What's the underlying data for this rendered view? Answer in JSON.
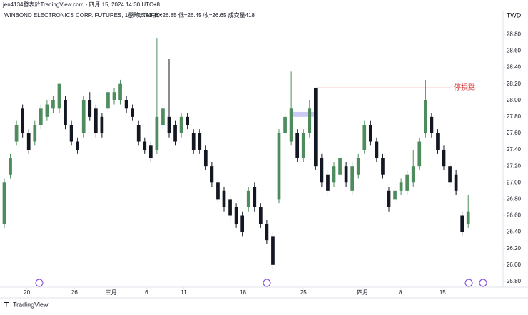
{
  "chart_data": {
    "type": "candlestick",
    "header": "jen4134發表於TradingView.com - 四月 15, 2024 14:30 UTC+8",
    "title": "WINBOND ELECTRONICS CORP. FUTURES, 1小時, TAIFEX",
    "legend_values": "開=26.50  高=26.85  低=26.45  收=26.65  成交量418",
    "currency": "TWD",
    "footer": "TradingView",
    "up_color": "#4e8c5d",
    "down_color": "#131722",
    "grid": false,
    "ylim": [
      25.73,
      29.08
    ],
    "yticks": [
      {
        "value": 25.8,
        "label": "25.80"
      },
      {
        "value": 26.0,
        "label": "26.00"
      },
      {
        "value": 26.2,
        "label": "26.20"
      },
      {
        "value": 26.4,
        "label": "26.40"
      },
      {
        "value": 26.6,
        "label": "26.60"
      },
      {
        "value": 26.8,
        "label": "26.80"
      },
      {
        "value": 27.0,
        "label": "27.00"
      },
      {
        "value": 27.2,
        "label": "27.20"
      },
      {
        "value": 27.4,
        "label": "27.40"
      },
      {
        "value": 27.6,
        "label": "27.60"
      },
      {
        "value": 27.8,
        "label": "27.80"
      },
      {
        "value": 28.0,
        "label": "28.00"
      },
      {
        "value": 28.2,
        "label": "28.20"
      },
      {
        "value": 28.4,
        "label": "28.40"
      },
      {
        "value": 28.6,
        "label": "28.60"
      },
      {
        "value": 28.8,
        "label": "28.80"
      }
    ],
    "xlim": [
      -0.7,
      81.7
    ],
    "xticks": [
      {
        "value": 3.7,
        "label": "20"
      },
      {
        "value": 11.5,
        "label": "26"
      },
      {
        "value": 17.5,
        "label": "三月"
      },
      {
        "value": 23.3,
        "label": "6"
      },
      {
        "value": 29.4,
        "label": "11"
      },
      {
        "value": 39.1,
        "label": "18"
      },
      {
        "value": 49.0,
        "label": "25"
      },
      {
        "value": 58.7,
        "label": "四月"
      },
      {
        "value": 64.9,
        "label": "8"
      },
      {
        "value": 71.8,
        "label": "15"
      }
    ],
    "open": [
      26.5,
      27.1,
      27.5,
      27.9,
      27.6,
      27.5,
      27.7,
      27.8,
      27.9,
      27.9,
      28.0,
      27.7,
      27.5,
      27.6,
      28.0,
      27.9,
      27.8,
      27.9,
      28.0,
      28.0,
      28.0,
      27.9,
      27.7,
      27.5,
      27.45,
      27.4,
      27.7,
      27.8,
      27.7,
      27.6,
      27.8,
      27.6,
      27.6,
      27.4,
      27.2,
      27.0,
      26.9,
      26.8,
      26.7,
      26.6,
      26.7,
      26.95,
      26.7,
      26.5,
      26.35,
      26.8,
      27.6,
      27.5,
      27.6,
      27.3,
      27.6,
      28.15,
      27.3,
      27.1,
      27.0,
      27.1,
      27.2,
      26.9,
      27.1,
      27.4,
      27.7,
      27.5,
      27.3,
      26.9,
      26.8,
      26.9,
      26.9,
      27.0,
      27.2,
      27.6,
      27.8,
      27.6,
      27.4,
      27.2,
      27.1,
      26.6,
      26.5
    ],
    "high": [
      27.05,
      27.35,
      27.75,
      27.95,
      27.65,
      27.75,
      27.95,
      28.0,
      28.05,
      28.2,
      28.05,
      27.75,
      27.55,
      28.05,
      28.1,
      27.95,
      27.85,
      28.15,
      28.15,
      28.25,
      28.05,
      27.95,
      27.75,
      27.55,
      27.5,
      28.75,
      27.95,
      28.5,
      27.75,
      27.85,
      27.85,
      27.65,
      27.65,
      27.45,
      27.25,
      27.05,
      26.95,
      26.85,
      26.75,
      26.65,
      26.95,
      27.0,
      26.75,
      26.55,
      26.4,
      27.65,
      27.85,
      28.35,
      27.65,
      27.65,
      28.0,
      28.15,
      27.35,
      27.15,
      27.25,
      27.35,
      27.25,
      27.25,
      27.35,
      27.75,
      27.75,
      27.55,
      27.35,
      26.95,
      26.95,
      27.05,
      27.15,
      27.4,
      27.55,
      28.25,
      27.85,
      27.65,
      27.45,
      27.25,
      27.15,
      26.65,
      26.85
    ],
    "low": [
      26.45,
      27.05,
      27.45,
      27.55,
      27.35,
      27.45,
      27.65,
      27.75,
      27.85,
      27.85,
      27.65,
      27.45,
      27.35,
      27.55,
      27.75,
      27.55,
      27.55,
      27.85,
      27.95,
      27.95,
      27.85,
      27.75,
      27.45,
      27.35,
      27.25,
      27.35,
      27.65,
      27.55,
      27.45,
      27.55,
      27.65,
      27.35,
      27.35,
      27.15,
      26.95,
      26.75,
      26.65,
      26.55,
      26.45,
      26.35,
      26.65,
      26.65,
      26.45,
      26.25,
      25.95,
      26.75,
      27.55,
      27.45,
      27.25,
      27.25,
      27.55,
      27.15,
      26.95,
      26.85,
      26.95,
      27.05,
      26.95,
      26.85,
      27.05,
      27.35,
      27.45,
      27.25,
      27.05,
      26.65,
      26.75,
      26.85,
      26.85,
      26.95,
      27.15,
      27.55,
      27.55,
      27.35,
      27.15,
      26.95,
      26.85,
      26.35,
      26.45
    ],
    "close": [
      27.0,
      27.3,
      27.7,
      27.6,
      27.4,
      27.7,
      27.9,
      27.95,
      28.0,
      28.2,
      27.7,
      27.5,
      27.4,
      28.0,
      27.8,
      27.6,
      27.6,
      28.1,
      28.1,
      28.2,
      27.9,
      27.8,
      27.5,
      27.4,
      27.3,
      27.8,
      27.9,
      27.6,
      27.5,
      27.8,
      27.7,
      27.4,
      27.4,
      27.2,
      27.0,
      26.8,
      26.7,
      26.6,
      26.5,
      26.4,
      26.9,
      26.7,
      26.5,
      26.3,
      26.0,
      27.6,
      27.8,
      27.9,
      27.3,
      27.6,
      27.9,
      27.2,
      27.0,
      26.9,
      27.2,
      27.3,
      27.0,
      27.2,
      27.3,
      27.7,
      27.5,
      27.3,
      27.1,
      26.7,
      26.9,
      27.0,
      27.1,
      27.2,
      27.5,
      28.0,
      27.6,
      27.4,
      27.2,
      27.0,
      26.9,
      26.4,
      26.65
    ],
    "stop": {
      "label": "停損點",
      "value": 28.15,
      "start": 51,
      "color": "#d32f2f"
    },
    "zone": {
      "low": 27.8,
      "high": 27.86,
      "start": 47,
      "end": 51,
      "color": "#b7b3f0"
    }
  }
}
